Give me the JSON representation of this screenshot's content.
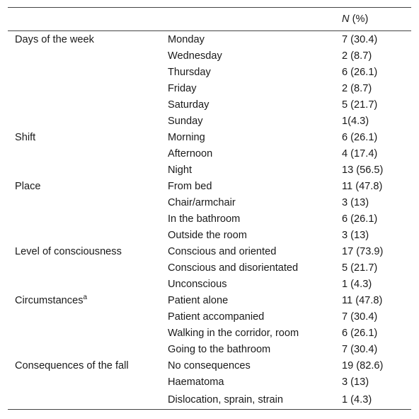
{
  "header": {
    "col1": "",
    "col2": "",
    "n_italic": "N",
    "pct": " (%)"
  },
  "rows": [
    {
      "category": "Days of the week",
      "item": "Monday",
      "value": "7 (30.4)"
    },
    {
      "category": "",
      "item": "Wednesday",
      "value": "2 (8.7)"
    },
    {
      "category": "",
      "item": "Thursday",
      "value": "6 (26.1)"
    },
    {
      "category": "",
      "item": "Friday",
      "value": "2 (8.7)"
    },
    {
      "category": "",
      "item": "Saturday",
      "value": "5 (21.7)"
    },
    {
      "category": "",
      "item": "Sunday",
      "value": "1(4.3)"
    },
    {
      "category": "Shift",
      "item": "Morning",
      "value": "6 (26.1)"
    },
    {
      "category": "",
      "item": "Afternoon",
      "value": "4 (17.4)"
    },
    {
      "category": "",
      "item": "Night",
      "value": "13 (56.5)"
    },
    {
      "category": "Place",
      "item": "From bed",
      "value": "11 (47.8)"
    },
    {
      "category": "",
      "item": "Chair/armchair",
      "value": "3 (13)"
    },
    {
      "category": "",
      "item": "In the bathroom",
      "value": "6 (26.1)"
    },
    {
      "category": "",
      "item": "Outside the room",
      "value": "3 (13)"
    },
    {
      "category": "Level of consciousness",
      "item": "Conscious and oriented",
      "value": "17 (73.9)"
    },
    {
      "category": "",
      "item": "Conscious and disorientated",
      "value": "5 (21.7)"
    },
    {
      "category": "",
      "item": "Unconscious",
      "value": "1 (4.3)"
    },
    {
      "category": "Circumstances",
      "sup": "a",
      "item": "Patient alone",
      "value": "11 (47.8)"
    },
    {
      "category": "",
      "item": "Patient accompanied",
      "value": "7 (30.4)"
    },
    {
      "category": "",
      "item": "Walking in the corridor, room",
      "value": "6 (26.1)"
    },
    {
      "category": "",
      "item": "Going to the bathroom",
      "value": "7 (30.4)"
    },
    {
      "category": "Consequences of the fall",
      "item": "No consequences",
      "value": "19 (82.6)"
    },
    {
      "category": "",
      "item": "Haematoma",
      "value": "3 (13)"
    },
    {
      "category": "",
      "item": "Dislocation, sprain, strain",
      "value": "1 (4.3)"
    }
  ]
}
